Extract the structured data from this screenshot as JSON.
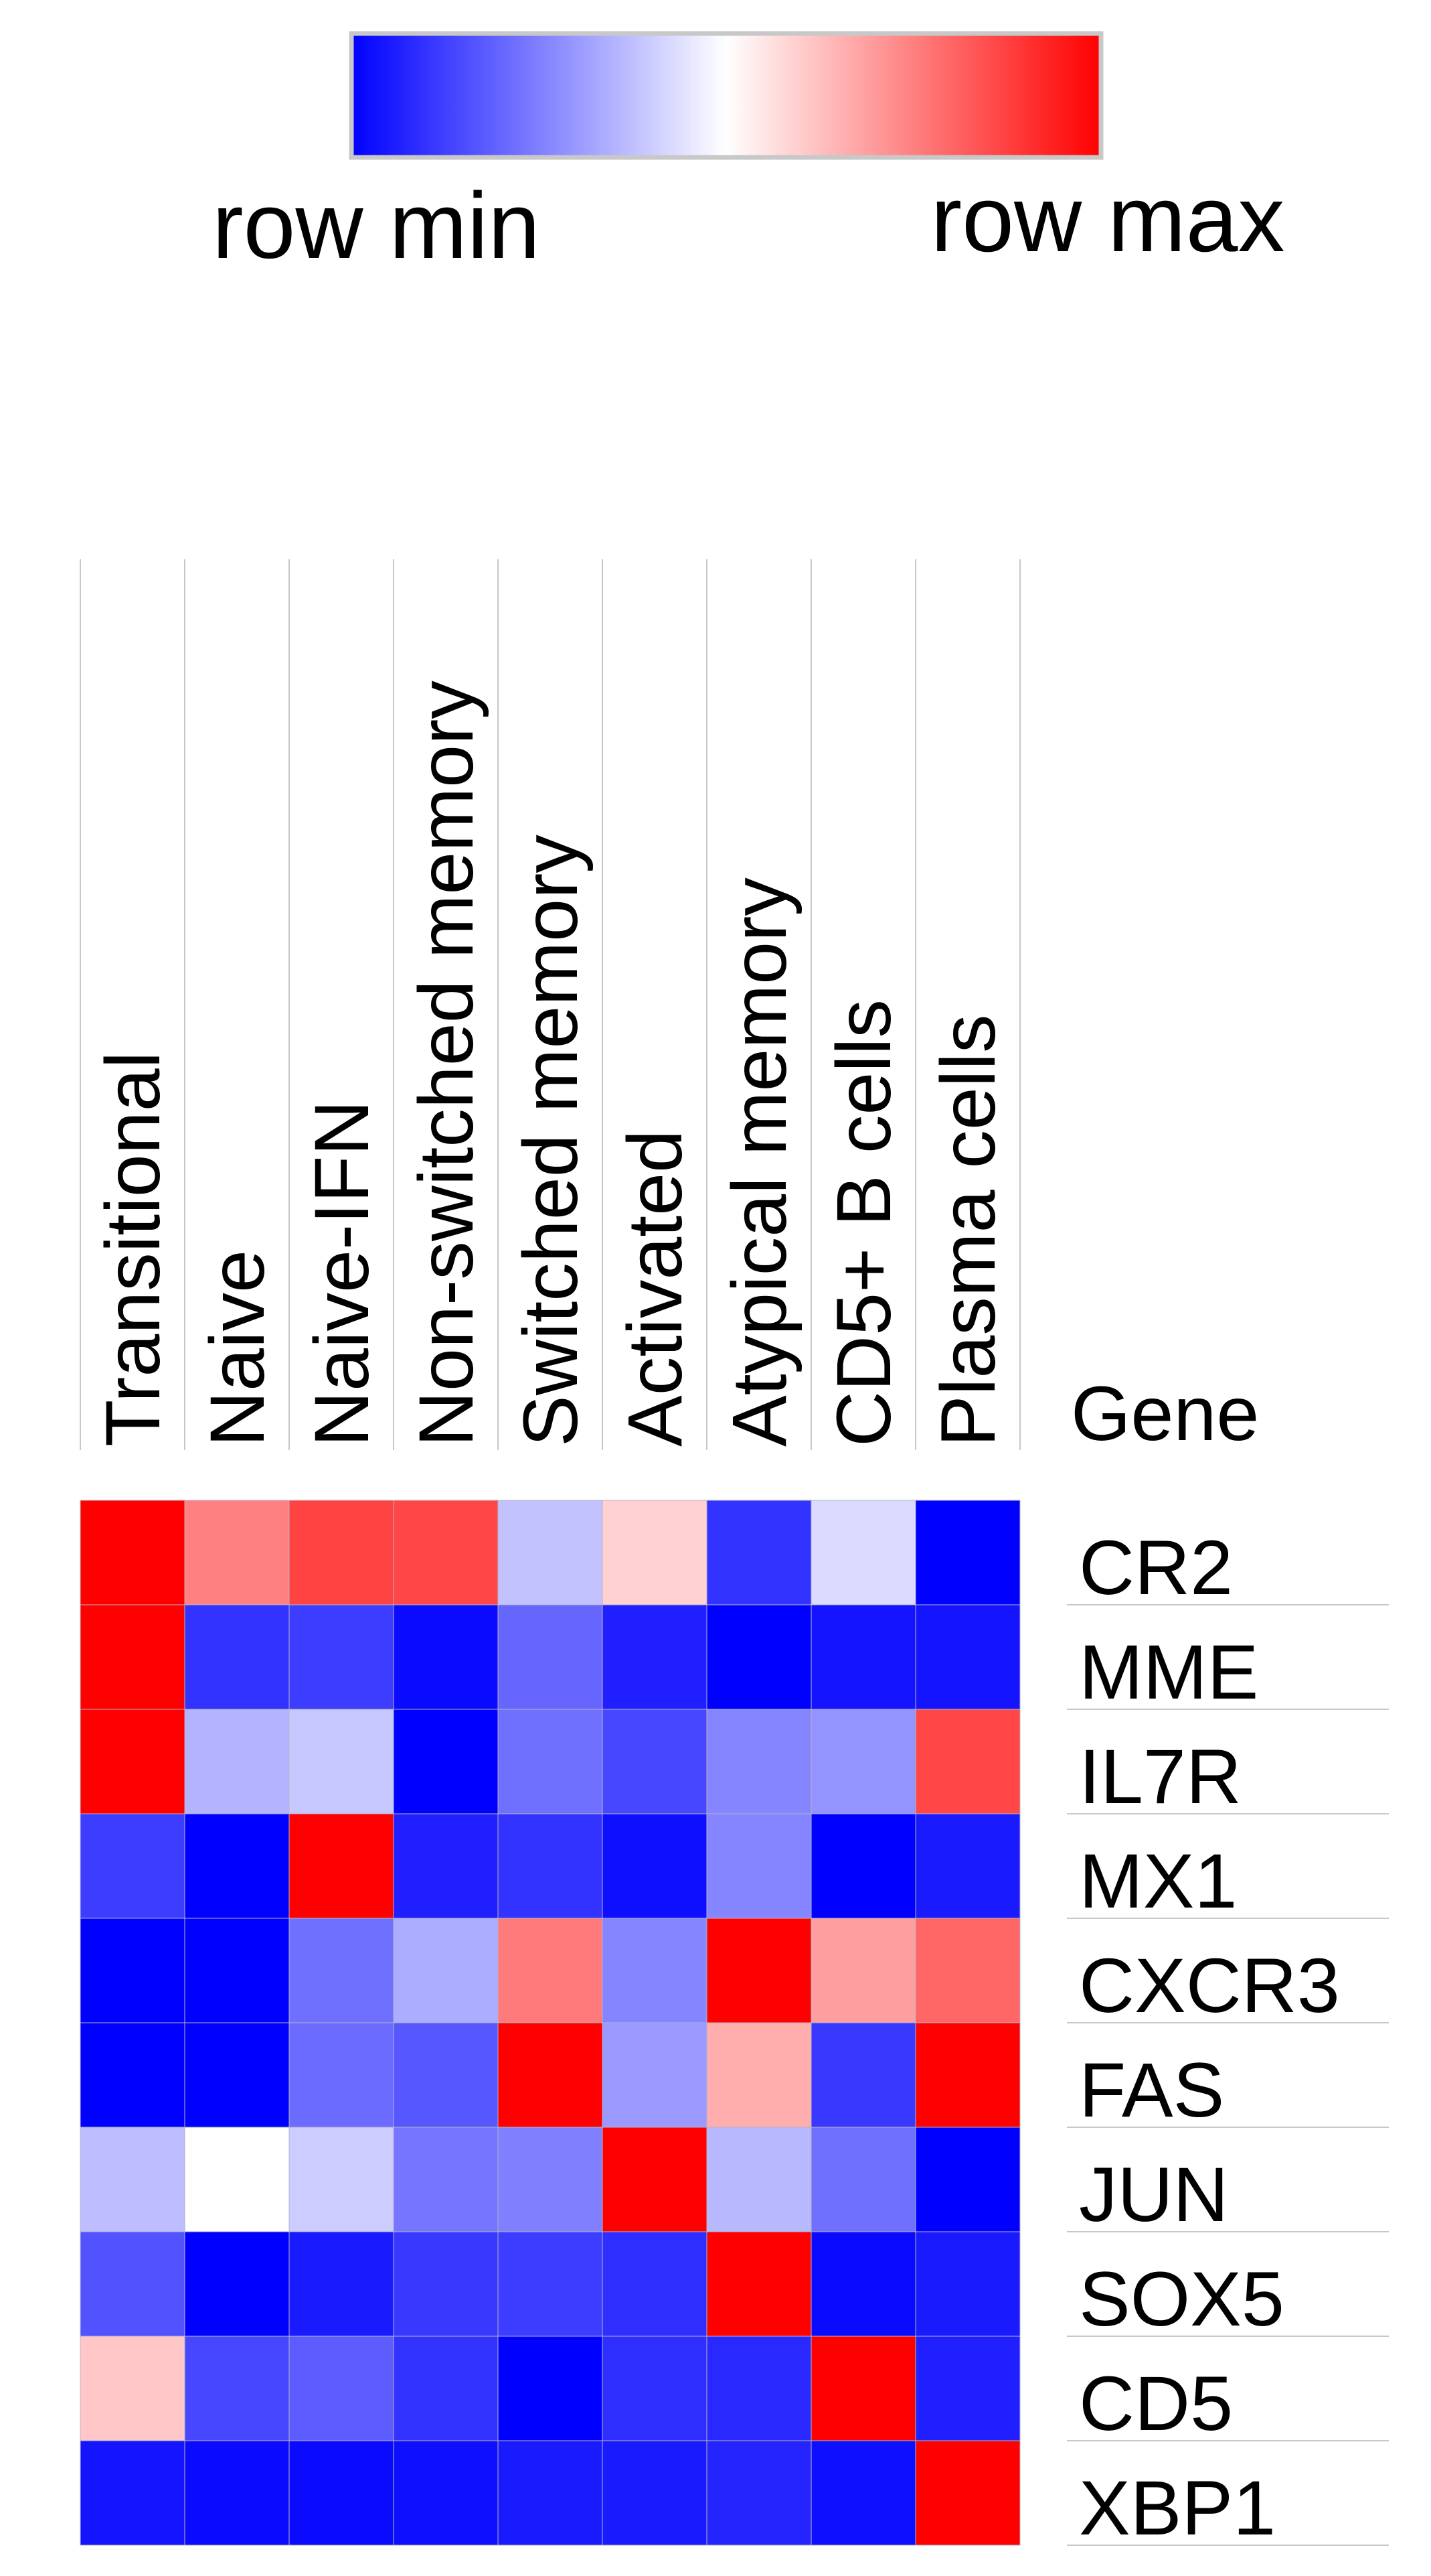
{
  "chart_data": {
    "type": "heatmap",
    "legend": {
      "min_label": "row min",
      "max_label": "row max",
      "min_color": "#0000ff",
      "mid_color": "#ffffff",
      "max_color": "#ff0000"
    },
    "columns": [
      "Transitional",
      "Naive",
      "Naive-IFN",
      "Non-switched memory",
      "Switched memory",
      "Activated",
      "Atypical memory",
      "CD5+ B cells",
      "Plasma cells"
    ],
    "row_header": "Gene",
    "rows": [
      "CR2",
      "MME",
      "IL7R",
      "MX1",
      "CXCR3",
      "FAS",
      "JUN",
      "SOX5",
      "CD5",
      "XBP1"
    ],
    "values": [
      [
        1.0,
        0.75,
        0.87,
        0.86,
        0.38,
        0.59,
        0.1,
        0.43,
        0.0
      ],
      [
        1.0,
        0.1,
        0.12,
        0.02,
        0.2,
        0.06,
        0.0,
        0.04,
        0.04
      ],
      [
        1.0,
        0.35,
        0.39,
        0.0,
        0.22,
        0.14,
        0.26,
        0.29,
        0.86
      ],
      [
        0.12,
        0.0,
        1.0,
        0.06,
        0.1,
        0.03,
        0.26,
        0.0,
        0.05
      ],
      [
        0.0,
        0.0,
        0.22,
        0.34,
        0.76,
        0.26,
        1.0,
        0.69,
        0.8
      ],
      [
        0.0,
        0.0,
        0.21,
        0.17,
        1.0,
        0.3,
        0.66,
        0.11,
        1.0
      ],
      [
        0.37,
        0.5,
        0.4,
        0.23,
        0.25,
        1.0,
        0.36,
        0.22,
        0.0
      ],
      [
        0.16,
        0.0,
        0.05,
        0.11,
        0.12,
        0.09,
        1.0,
        0.02,
        0.05
      ],
      [
        0.61,
        0.14,
        0.18,
        0.1,
        0.0,
        0.09,
        0.08,
        1.0,
        0.06
      ],
      [
        0.04,
        0.02,
        0.02,
        0.03,
        0.05,
        0.05,
        0.07,
        0.03,
        1.0
      ]
    ]
  }
}
